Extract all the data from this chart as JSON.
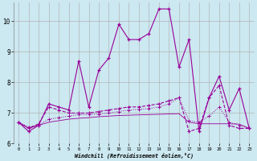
{
  "xlabel": "Windchill (Refroidissement éolien,°C)",
  "background_color": "#cce8f0",
  "grid_color": "#aaaaaa",
  "line_color": "#990099",
  "x": [
    0,
    1,
    2,
    3,
    4,
    5,
    6,
    7,
    8,
    9,
    10,
    11,
    12,
    13,
    14,
    15,
    16,
    17,
    18,
    19,
    20,
    21,
    22,
    23
  ],
  "series1": [
    6.7,
    6.4,
    6.6,
    7.3,
    7.2,
    7.1,
    8.7,
    7.2,
    8.4,
    8.8,
    9.9,
    9.4,
    9.4,
    9.6,
    10.4,
    10.4,
    8.5,
    9.4,
    6.4,
    7.5,
    8.2,
    7.1,
    7.8,
    6.5
  ],
  "series2": [
    6.7,
    6.5,
    6.65,
    7.2,
    7.1,
    7.0,
    7.0,
    7.0,
    7.05,
    7.1,
    7.15,
    7.2,
    7.2,
    7.25,
    7.3,
    7.4,
    7.5,
    6.4,
    6.5,
    7.5,
    7.9,
    6.6,
    6.5,
    6.5
  ],
  "series3": [
    6.7,
    6.55,
    6.6,
    6.8,
    6.85,
    6.9,
    6.95,
    6.95,
    6.97,
    7.0,
    7.05,
    7.1,
    7.12,
    7.15,
    7.2,
    7.3,
    7.5,
    6.75,
    6.7,
    6.9,
    7.2,
    6.7,
    6.6,
    6.5
  ],
  "series4": [
    6.7,
    6.5,
    6.6,
    6.7,
    6.75,
    6.8,
    6.83,
    6.85,
    6.88,
    6.9,
    6.92,
    6.93,
    6.94,
    6.95,
    6.96,
    6.97,
    6.98,
    6.7,
    6.65,
    6.65,
    6.65,
    6.65,
    6.64,
    6.5
  ],
  "ylim": [
    6.0,
    10.6
  ],
  "xlim": [
    -0.5,
    23.5
  ],
  "yticks": [
    6,
    7,
    8,
    9,
    10
  ],
  "xticks": [
    0,
    1,
    2,
    3,
    4,
    5,
    6,
    7,
    8,
    9,
    10,
    11,
    12,
    13,
    14,
    15,
    16,
    17,
    18,
    19,
    20,
    21,
    22,
    23
  ]
}
